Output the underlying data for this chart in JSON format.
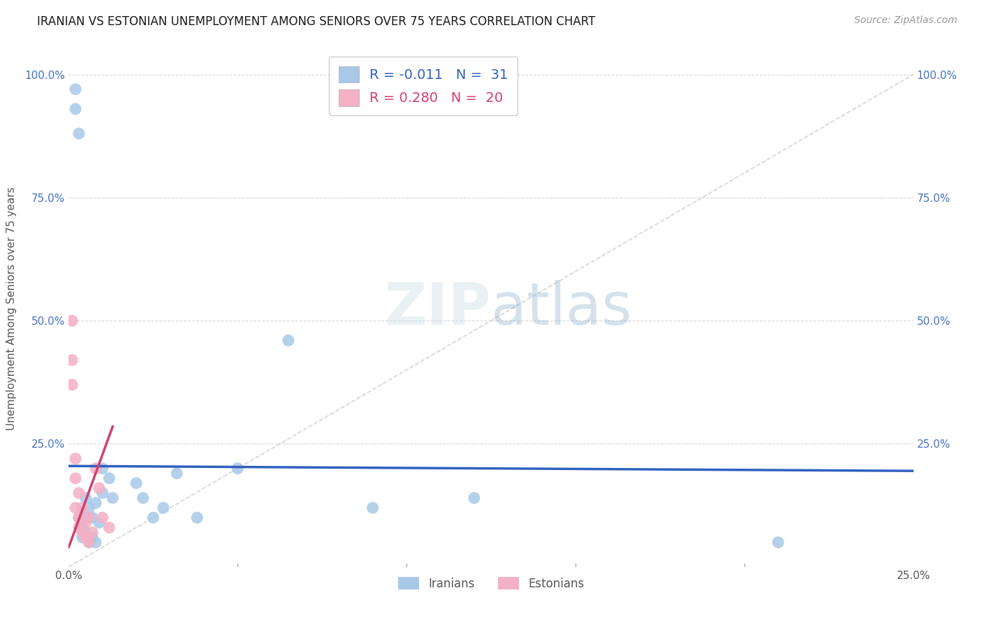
{
  "title": "IRANIAN VS ESTONIAN UNEMPLOYMENT AMONG SENIORS OVER 75 YEARS CORRELATION CHART",
  "source": "Source: ZipAtlas.com",
  "ylabel": "Unemployment Among Seniors over 75 years",
  "xlim": [
    0.0,
    0.25
  ],
  "ylim": [
    0.0,
    1.05
  ],
  "iranians_color": "#a8c8e8",
  "estonians_color": "#f4b0c4",
  "trend_iranian_color": "#3060c0",
  "trend_estonian_color": "#d04070",
  "background_color": "#ffffff",
  "grid_color": "#cccccc",
  "legend_iranian_r": "-0.011",
  "legend_iranian_n": "31",
  "legend_estonian_r": "0.280",
  "legend_estonian_n": "20",
  "iranians_x": [
    0.002,
    0.002,
    0.003,
    0.003,
    0.004,
    0.004,
    0.005,
    0.005,
    0.005,
    0.006,
    0.006,
    0.007,
    0.007,
    0.008,
    0.008,
    0.009,
    0.01,
    0.01,
    0.012,
    0.013,
    0.02,
    0.022,
    0.025,
    0.028,
    0.032,
    0.038,
    0.05,
    0.065,
    0.09,
    0.12,
    0.21
  ],
  "iranians_y": [
    0.97,
    0.93,
    0.88,
    0.1,
    0.08,
    0.06,
    0.14,
    0.1,
    0.07,
    0.12,
    0.05,
    0.1,
    0.06,
    0.13,
    0.05,
    0.09,
    0.2,
    0.15,
    0.18,
    0.14,
    0.17,
    0.14,
    0.1,
    0.12,
    0.19,
    0.1,
    0.2,
    0.46,
    0.12,
    0.14,
    0.05
  ],
  "estonians_x": [
    0.001,
    0.001,
    0.001,
    0.002,
    0.002,
    0.002,
    0.003,
    0.003,
    0.003,
    0.004,
    0.004,
    0.005,
    0.005,
    0.006,
    0.006,
    0.007,
    0.008,
    0.009,
    0.01,
    0.012
  ],
  "estonians_y": [
    0.5,
    0.42,
    0.37,
    0.22,
    0.18,
    0.12,
    0.15,
    0.1,
    0.08,
    0.12,
    0.07,
    0.09,
    0.06,
    0.1,
    0.05,
    0.07,
    0.2,
    0.16,
    0.1,
    0.08
  ],
  "trend_iranian_x0": 0.0,
  "trend_iranian_x1": 0.25,
  "trend_iranian_y0": 0.205,
  "trend_iranian_y1": 0.195,
  "trend_estonian_x0": 0.0,
  "trend_estonian_x1": 0.013,
  "trend_estonian_y0": 0.04,
  "trend_estonian_y1": 0.285
}
